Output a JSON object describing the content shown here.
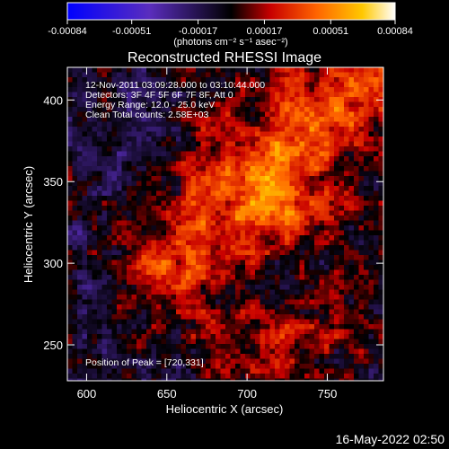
{
  "colorbar": {
    "ticks": [
      "-0.00084",
      "-0.00051",
      "-0.00017",
      "0.00017",
      "0.00051",
      "0.00084"
    ],
    "tick_values": [
      -0.00084,
      -0.00051,
      -0.00017,
      0.00017,
      0.00051,
      0.00084
    ],
    "range": [
      -0.00084,
      0.00084
    ],
    "unit_label": "(photons cm⁻² s⁻¹ asec⁻²)"
  },
  "title": "Reconstructed RHESSI Image",
  "info": {
    "line1": "12-Nov-2011 03:09:28.000 to 03:10:44.000",
    "line2": "Detectors: 3F 4F 5F 6F 7F 8F, Att 0",
    "line3": "Energy Range: 12.0 - 25.0 keV",
    "line4": "Clean     Total counts: 2.58E+03"
  },
  "peak_label": "Position of Peak = [720,331]",
  "timestamp": "16-May-2022 02:50",
  "chart_data": {
    "type": "heatmap",
    "title": "Reconstructed RHESSI Image",
    "xlabel": "Heliocentric X (arcsec)",
    "ylabel": "Heliocentric Y (arcsec)",
    "xlim": [
      588,
      785
    ],
    "ylim": [
      228,
      420
    ],
    "xticks": [
      600,
      650,
      700,
      750
    ],
    "xtick_labels": [
      "600",
      "650",
      "700",
      "750"
    ],
    "yticks": [
      250,
      300,
      350,
      400
    ],
    "ytick_labels": [
      "250",
      "300",
      "350",
      "400"
    ],
    "peak": [
      720,
      331
    ],
    "colormap": [
      "#0000ff",
      "#5a2dbe",
      "#000000",
      "#c80000",
      "#ff6400",
      "#ffc800",
      "#ffffff"
    ],
    "value_range": [
      -0.00084,
      0.00084
    ]
  }
}
